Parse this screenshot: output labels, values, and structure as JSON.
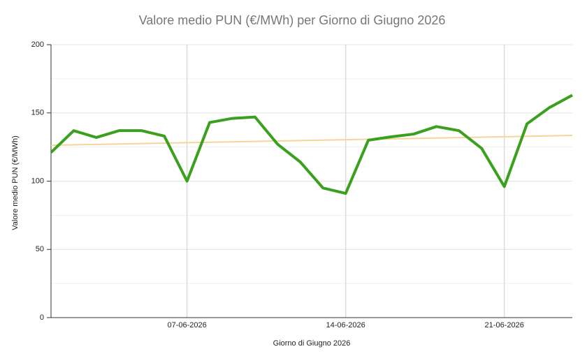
{
  "chart_data": {
    "type": "line",
    "title": "Valore medio PUN (€/MWh) per Giorno di Giugno 2026",
    "x_label": "Giorno di Giugno 2026",
    "y_label": "Valore medio PUN (€/MWh)",
    "categories": [
      null,
      null,
      null,
      null,
      null,
      null,
      "07-06-2026",
      null,
      null,
      null,
      null,
      null,
      null,
      "14-06-2026",
      null,
      null,
      null,
      null,
      null,
      null,
      "21-06-2026",
      null,
      null,
      null
    ],
    "series": [
      {
        "color": "#3aa01d",
        "values": [
          121,
          137,
          132,
          137,
          137,
          133,
          100,
          143,
          146,
          147,
          127,
          114,
          95,
          91,
          130,
          132.5,
          134.5,
          140,
          137,
          124,
          96,
          142,
          154,
          163
        ]
      }
    ],
    "trend": {
      "color": "#f7d49a",
      "values": [
        126.3,
        133.5
      ]
    },
    "ylim": [
      0,
      200
    ],
    "yticks": [
      0,
      50,
      100,
      150,
      200
    ],
    "minor_yticks": [
      25,
      75,
      125,
      175
    ],
    "grid": true
  }
}
